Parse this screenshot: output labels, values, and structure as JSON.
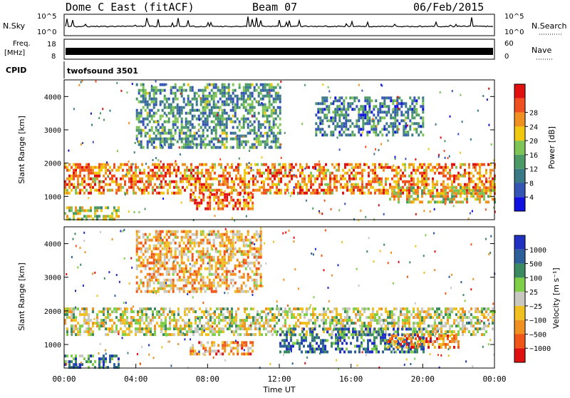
{
  "header": {
    "station": "Dome C East (fitACF)",
    "beam": "Beam 07",
    "date": "06/Feb/2015"
  },
  "summary": {
    "nsky_label": "N.Sky",
    "nsearch_label": "N.Search",
    "nsky_ticks": [
      "10^5",
      "10^0"
    ],
    "nsearch_ticks": [
      "10^5",
      "10^0"
    ],
    "freq_label": "Freq.",
    "freq_unit": "[MHz]",
    "freq_ticks": [
      "18",
      "8"
    ],
    "nave_label": "Nave",
    "nave_ticks": [
      "60",
      "0"
    ],
    "cpid_label": "CPID",
    "cpid_value": "twofsound 3501"
  },
  "chart_data": [
    {
      "type": "heatmap",
      "name": "power-panel",
      "ylabel": "Slant Range [km]",
      "xlabel": "",
      "ylim": [
        300,
        4500
      ],
      "yticks": [
        "1000",
        "2000",
        "3000",
        "4000"
      ],
      "colorbar": {
        "label": "Power [dB]",
        "ticks": [
          "4",
          "8",
          "12",
          "16",
          "20",
          "24",
          "28"
        ],
        "colors": [
          "#1010e0",
          "#3555b5",
          "#3a7a88",
          "#4c9a66",
          "#7fc456",
          "#f0c810",
          "#f09020",
          "#f05020",
          "#e01010"
        ]
      },
      "bands": [
        {
          "t0": 0.0,
          "t1": 24.0,
          "r0": 1100,
          "r1": 2000,
          "level": 0.75
        },
        {
          "t0": 0.0,
          "t1": 3.0,
          "r0": 350,
          "r1": 700,
          "level": 0.55
        },
        {
          "t0": 7.0,
          "t1": 10.5,
          "r0": 600,
          "r1": 1100,
          "level": 0.8
        },
        {
          "t0": 4.0,
          "t1": 12.0,
          "r0": 2500,
          "r1": 4400,
          "level": 0.35
        },
        {
          "t0": 14.0,
          "t1": 20.0,
          "r0": 2800,
          "r1": 4000,
          "level": 0.3
        },
        {
          "t0": 18.0,
          "t1": 24.0,
          "r0": 800,
          "r1": 1300,
          "level": 0.6
        }
      ]
    },
    {
      "type": "heatmap",
      "name": "velocity-panel",
      "ylabel": "Slant Range [km]",
      "xlabel": "Time UT",
      "ylim": [
        300,
        4500
      ],
      "yticks": [
        "1000",
        "2000",
        "3000",
        "4000"
      ],
      "xticks": [
        "00:00",
        "04:00",
        "08:00",
        "12:00",
        "16:00",
        "20:00",
        "00:00"
      ],
      "xlim": [
        0,
        24
      ],
      "colorbar": {
        "label": "Velocity [m s⁻¹]",
        "ticks": [
          "1000",
          "500",
          "100",
          "25",
          "−25",
          "−100",
          "−500",
          "−1000"
        ],
        "colors": [
          "#2030c0",
          "#2d5f9a",
          "#3b8a62",
          "#7fcf48",
          "#c8c8c0",
          "#f0c020",
          "#f09020",
          "#f05518",
          "#e01010"
        ]
      },
      "bands": [
        {
          "t0": 0.0,
          "t1": 24.0,
          "r0": 1300,
          "r1": 2100,
          "level": 0.5
        },
        {
          "t0": 0.0,
          "t1": 3.0,
          "r0": 350,
          "r1": 700,
          "level": 0.25
        },
        {
          "t0": 7.0,
          "t1": 10.5,
          "r0": 700,
          "r1": 1100,
          "level": 0.7
        },
        {
          "t0": 12.0,
          "t1": 20.0,
          "r0": 800,
          "r1": 1500,
          "level": 0.2
        },
        {
          "t0": 4.0,
          "t1": 11.0,
          "r0": 2600,
          "r1": 4400,
          "level": 0.65
        },
        {
          "t0": 18.0,
          "t1": 22.0,
          "r0": 900,
          "r1": 1300,
          "level": 0.75
        }
      ]
    }
  ]
}
